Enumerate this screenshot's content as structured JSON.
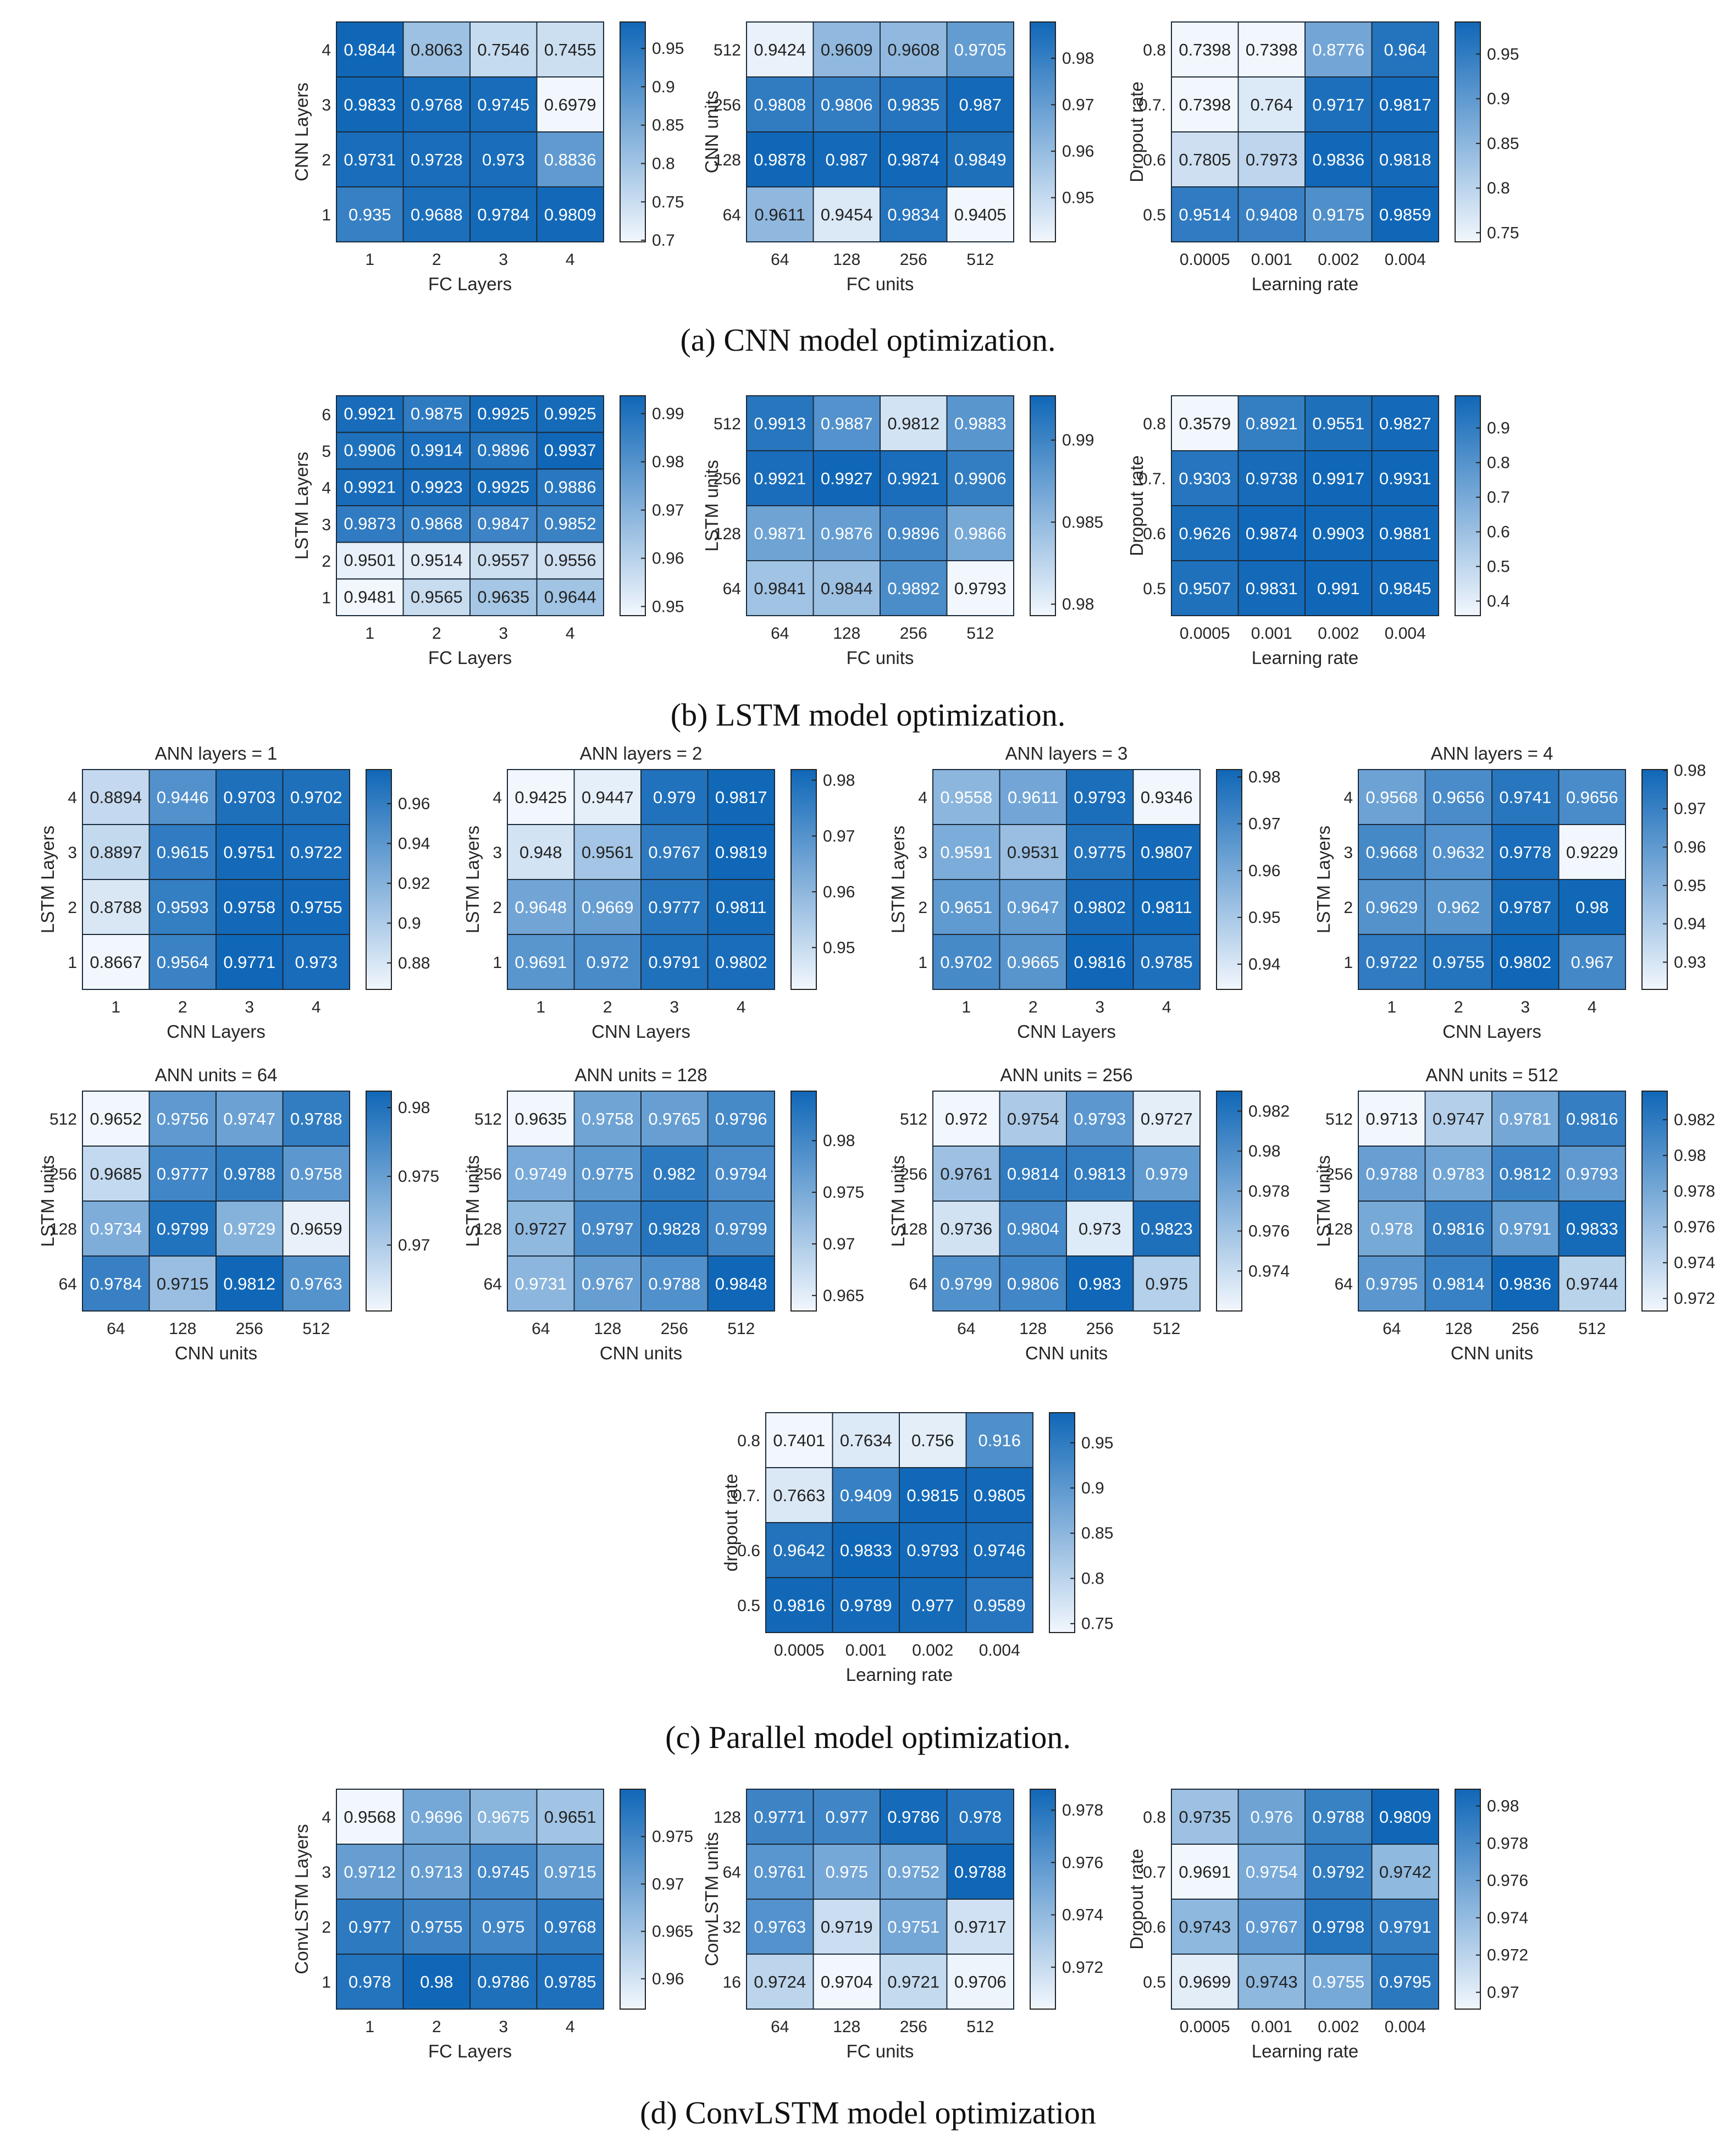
{
  "colors": {
    "low": "#f2f7fd",
    "high": "#1067b7",
    "text_dark": "#222222",
    "text_light": "#ffffff",
    "grid": "#1a2a3a"
  },
  "captions": [
    "(a) CNN model optimization.",
    "(b) LSTM model optimization.",
    "(c) Parallel model optimization.",
    "(d) ConvLSTM model optimization"
  ],
  "chart_data": [
    {
      "type": "heatmap",
      "title": "",
      "xlabel": "FC Layers",
      "ylabel": "CNN Layers",
      "x": [
        "1",
        "2",
        "3",
        "4"
      ],
      "y": [
        "4",
        "3",
        "2",
        "1"
      ],
      "values": [
        [
          0.9844,
          0.8063,
          0.7546,
          0.7455
        ],
        [
          0.9833,
          0.9768,
          0.9745,
          0.6979
        ],
        [
          0.9731,
          0.9728,
          0.973,
          0.8836
        ],
        [
          0.935,
          0.9688,
          0.9784,
          0.9809
        ]
      ],
      "clim": [
        0.6979,
        0.9844
      ],
      "colorbar_ticks": [
        "0.95",
        "0.9",
        "0.85",
        "0.8",
        "0.75",
        "0.7"
      ]
    },
    {
      "type": "heatmap",
      "title": "",
      "xlabel": "FC units",
      "ylabel": "CNN units",
      "x": [
        "64",
        "128",
        "256",
        "512"
      ],
      "y": [
        "512",
        "256",
        "128",
        "64"
      ],
      "values": [
        [
          0.9424,
          0.9609,
          0.9608,
          0.9705
        ],
        [
          0.9808,
          0.9806,
          0.9835,
          0.987
        ],
        [
          0.9878,
          0.987,
          0.9874,
          0.9849
        ],
        [
          0.9611,
          0.9454,
          0.9834,
          0.9405
        ]
      ],
      "clim": [
        0.9405,
        0.9878
      ],
      "colorbar_ticks": [
        "0.98",
        "0.97",
        "0.96",
        "0.95"
      ]
    },
    {
      "type": "heatmap",
      "title": "",
      "xlabel": "Learning rate",
      "ylabel": "Dropout rate",
      "x": [
        "0.0005",
        "0.001",
        "0.002",
        "0.004"
      ],
      "y": [
        "0.8",
        "0.7.",
        "0.6",
        "0.5"
      ],
      "values": [
        [
          0.7398,
          0.7398,
          0.8776,
          0.964
        ],
        [
          0.7398,
          0.764,
          0.9717,
          0.9817
        ],
        [
          0.7805,
          0.7973,
          0.9836,
          0.9818
        ],
        [
          0.9514,
          0.9408,
          0.9175,
          0.9859
        ]
      ],
      "clim": [
        0.7398,
        0.9859
      ],
      "colorbar_ticks": [
        "0.95",
        "0.9",
        "0.85",
        "0.8",
        "0.75"
      ]
    },
    {
      "type": "heatmap",
      "title": "",
      "xlabel": "FC Layers",
      "ylabel": "LSTM Layers",
      "x": [
        "1",
        "2",
        "3",
        "4"
      ],
      "y": [
        "6",
        "5",
        "4",
        "3",
        "2",
        "1"
      ],
      "values": [
        [
          0.9921,
          0.9875,
          0.9925,
          0.9925
        ],
        [
          0.9906,
          0.9914,
          0.9896,
          0.9937
        ],
        [
          0.9921,
          0.9923,
          0.9925,
          0.9886
        ],
        [
          0.9873,
          0.9868,
          0.9847,
          0.9852
        ],
        [
          0.9501,
          0.9514,
          0.9557,
          0.9556
        ],
        [
          0.9481,
          0.9565,
          0.9635,
          0.9644
        ]
      ],
      "clim": [
        0.9481,
        0.9937
      ],
      "colorbar_ticks": [
        "0.99",
        "0.98",
        "0.97",
        "0.96",
        "0.95"
      ]
    },
    {
      "type": "heatmap",
      "title": "",
      "xlabel": "FC units",
      "ylabel": "LSTM units",
      "x": [
        "64",
        "128",
        "256",
        "512"
      ],
      "y": [
        "512",
        "256",
        "128",
        "64"
      ],
      "values": [
        [
          0.9913,
          0.9887,
          0.9812,
          0.9883
        ],
        [
          0.9921,
          0.9927,
          0.9921,
          0.9906
        ],
        [
          0.9871,
          0.9876,
          0.9896,
          0.9866
        ],
        [
          0.9841,
          0.9844,
          0.9892,
          0.9793
        ]
      ],
      "clim": [
        0.9793,
        0.9927
      ],
      "colorbar_ticks": [
        "0.99",
        "0.985",
        "0.98"
      ]
    },
    {
      "type": "heatmap",
      "title": "",
      "xlabel": "Learning rate",
      "ylabel": "Dropout rate",
      "x": [
        "0.0005",
        "0.001",
        "0.002",
        "0.004"
      ],
      "y": [
        "0.8",
        "0.7.",
        "0.6",
        "0.5"
      ],
      "values": [
        [
          0.3579,
          0.8921,
          0.9551,
          0.9827
        ],
        [
          0.9303,
          0.9738,
          0.9917,
          0.9931
        ],
        [
          0.9626,
          0.9874,
          0.9903,
          0.9881
        ],
        [
          0.9507,
          0.9831,
          0.991,
          0.9845
        ]
      ],
      "clim": [
        0.3579,
        0.9931
      ],
      "colorbar_ticks": [
        "0.9",
        "0.8",
        "0.7",
        "0.6",
        "0.5",
        "0.4"
      ]
    },
    {
      "type": "heatmap",
      "title": "ANN layers = 1",
      "xlabel": "CNN Layers",
      "ylabel": "LSTM Layers",
      "x": [
        "1",
        "2",
        "3",
        "4"
      ],
      "y": [
        "4",
        "3",
        "2",
        "1"
      ],
      "values": [
        [
          0.8894,
          0.9446,
          0.9703,
          0.9702
        ],
        [
          0.8897,
          0.9615,
          0.9751,
          0.9722
        ],
        [
          0.8788,
          0.9593,
          0.9758,
          0.9755
        ],
        [
          0.8667,
          0.9564,
          0.9771,
          0.973
        ]
      ],
      "clim": [
        0.8667,
        0.9771
      ],
      "colorbar_ticks": [
        "0.96",
        "0.94",
        "0.92",
        "0.9",
        "0.88"
      ]
    },
    {
      "type": "heatmap",
      "title": "ANN layers = 2",
      "xlabel": "CNN Layers",
      "ylabel": "LSTM Layers",
      "x": [
        "1",
        "2",
        "3",
        "4"
      ],
      "y": [
        "4",
        "3",
        "2",
        "1"
      ],
      "values": [
        [
          0.9425,
          0.9447,
          0.979,
          0.9817
        ],
        [
          0.948,
          0.9561,
          0.9767,
          0.9819
        ],
        [
          0.9648,
          0.9669,
          0.9777,
          0.9811
        ],
        [
          0.9691,
          0.972,
          0.9791,
          0.9802
        ]
      ],
      "clim": [
        0.9425,
        0.9819
      ],
      "colorbar_ticks": [
        "0.98",
        "0.97",
        "0.96",
        "0.95"
      ]
    },
    {
      "type": "heatmap",
      "title": "ANN layers = 3",
      "xlabel": "CNN Layers",
      "ylabel": "LSTM Layers",
      "x": [
        "1",
        "2",
        "3",
        "4"
      ],
      "y": [
        "4",
        "3",
        "2",
        "1"
      ],
      "values": [
        [
          0.9558,
          0.9611,
          0.9793,
          0.9346
        ],
        [
          0.9591,
          0.9531,
          0.9775,
          0.9807
        ],
        [
          0.9651,
          0.9647,
          0.9802,
          0.9811
        ],
        [
          0.9702,
          0.9665,
          0.9816,
          0.9785
        ]
      ],
      "clim": [
        0.9346,
        0.9816
      ],
      "colorbar_ticks": [
        "0.98",
        "0.97",
        "0.96",
        "0.95",
        "0.94"
      ]
    },
    {
      "type": "heatmap",
      "title": "ANN layers = 4",
      "xlabel": "CNN Layers",
      "ylabel": "LSTM Layers",
      "x": [
        "1",
        "2",
        "3",
        "4"
      ],
      "y": [
        "4",
        "3",
        "2",
        "1"
      ],
      "values": [
        [
          0.9568,
          0.9656,
          0.9741,
          0.9656
        ],
        [
          0.9668,
          0.9632,
          0.9778,
          0.9229
        ],
        [
          0.9629,
          0.962,
          0.9787,
          0.98
        ],
        [
          0.9722,
          0.9755,
          0.9802,
          0.967
        ]
      ],
      "clim": [
        0.9229,
        0.9802
      ],
      "colorbar_ticks": [
        "0.98",
        "0.97",
        "0.96",
        "0.95",
        "0.94",
        "0.93"
      ]
    },
    {
      "type": "heatmap",
      "title": "ANN units = 64",
      "xlabel": "CNN units",
      "ylabel": "LSTM units",
      "x": [
        "64",
        "128",
        "256",
        "512"
      ],
      "y": [
        "512",
        "256",
        "128",
        "64"
      ],
      "values": [
        [
          0.9652,
          0.9756,
          0.9747,
          0.9788
        ],
        [
          0.9685,
          0.9777,
          0.9788,
          0.9758
        ],
        [
          0.9734,
          0.9799,
          0.9729,
          0.9659
        ],
        [
          0.9784,
          0.9715,
          0.9812,
          0.9763
        ]
      ],
      "clim": [
        0.9652,
        0.9812
      ],
      "colorbar_ticks": [
        "0.98",
        "0.975",
        "0.97"
      ]
    },
    {
      "type": "heatmap",
      "title": "ANN units = 128",
      "xlabel": "CNN units",
      "ylabel": "LSTM units",
      "x": [
        "64",
        "128",
        "256",
        "512"
      ],
      "y": [
        "512",
        "256",
        "128",
        "64"
      ],
      "values": [
        [
          0.9635,
          0.9758,
          0.9765,
          0.9796
        ],
        [
          0.9749,
          0.9775,
          0.982,
          0.9794
        ],
        [
          0.9727,
          0.9797,
          0.9828,
          0.9799
        ],
        [
          0.9731,
          0.9767,
          0.9788,
          0.9848
        ]
      ],
      "clim": [
        0.9635,
        0.9848
      ],
      "colorbar_ticks": [
        "0.98",
        "0.975",
        "0.97",
        "0.965"
      ]
    },
    {
      "type": "heatmap",
      "title": "ANN units = 256",
      "xlabel": "CNN units",
      "ylabel": "LSTM units",
      "x": [
        "64",
        "128",
        "256",
        "512"
      ],
      "y": [
        "512",
        "256",
        "128",
        "64"
      ],
      "values": [
        [
          0.972,
          0.9754,
          0.9793,
          0.9727
        ],
        [
          0.9761,
          0.9814,
          0.9813,
          0.979
        ],
        [
          0.9736,
          0.9804,
          0.973,
          0.9823
        ],
        [
          0.9799,
          0.9806,
          0.983,
          0.975
        ]
      ],
      "clim": [
        0.972,
        0.983
      ],
      "colorbar_ticks": [
        "0.982",
        "0.98",
        "0.978",
        "0.976",
        "0.974"
      ]
    },
    {
      "type": "heatmap",
      "title": "ANN units = 512",
      "xlabel": "CNN units",
      "ylabel": "LSTM units",
      "x": [
        "64",
        "128",
        "256",
        "512"
      ],
      "y": [
        "512",
        "256",
        "128",
        "64"
      ],
      "values": [
        [
          0.9713,
          0.9747,
          0.9781,
          0.9816
        ],
        [
          0.9788,
          0.9783,
          0.9812,
          0.9793
        ],
        [
          0.978,
          0.9816,
          0.9791,
          0.9833
        ],
        [
          0.9795,
          0.9814,
          0.9836,
          0.9744
        ]
      ],
      "clim": [
        0.9713,
        0.9836
      ],
      "colorbar_ticks": [
        "0.982",
        "0.98",
        "0.978",
        "0.976",
        "0.974",
        "0.972"
      ]
    },
    {
      "type": "heatmap",
      "title": "",
      "xlabel": "Learning rate",
      "ylabel": "dropout rate",
      "x": [
        "0.0005",
        "0.001",
        "0.002",
        "0.004"
      ],
      "y": [
        "0.8",
        "0.7.",
        "0.6",
        "0.5"
      ],
      "values": [
        [
          0.7401,
          0.7634,
          0.756,
          0.916
        ],
        [
          0.7663,
          0.9409,
          0.9815,
          0.9805
        ],
        [
          0.9642,
          0.9833,
          0.9793,
          0.9746
        ],
        [
          0.9816,
          0.9789,
          0.977,
          0.9589
        ]
      ],
      "clim": [
        0.7401,
        0.9833
      ],
      "colorbar_ticks": [
        "0.95",
        "0.9",
        "0.85",
        "0.8",
        "0.75"
      ]
    },
    {
      "type": "heatmap",
      "title": "",
      "xlabel": "FC Layers",
      "ylabel": "ConvLSTM Layers",
      "x": [
        "1",
        "2",
        "3",
        "4"
      ],
      "y": [
        "4",
        "3",
        "2",
        "1"
      ],
      "values": [
        [
          0.9568,
          0.9696,
          0.9675,
          0.9651
        ],
        [
          0.9712,
          0.9713,
          0.9745,
          0.9715
        ],
        [
          0.977,
          0.9755,
          0.975,
          0.9768
        ],
        [
          0.978,
          0.98,
          0.9786,
          0.9785
        ]
      ],
      "clim": [
        0.9568,
        0.98
      ],
      "colorbar_ticks": [
        "0.975",
        "0.97",
        "0.965",
        "0.96"
      ]
    },
    {
      "type": "heatmap",
      "title": "",
      "xlabel": "FC units",
      "ylabel": "ConvLSTM units",
      "x": [
        "64",
        "128",
        "256",
        "512"
      ],
      "y": [
        "128",
        "64",
        "32",
        "16"
      ],
      "values": [
        [
          0.9771,
          0.977,
          0.9786,
          0.978
        ],
        [
          0.9761,
          0.975,
          0.9752,
          0.9788
        ],
        [
          0.9763,
          0.9719,
          0.9751,
          0.9717
        ],
        [
          0.9724,
          0.9704,
          0.9721,
          0.9706
        ]
      ],
      "clim": [
        0.9704,
        0.9788
      ],
      "colorbar_ticks": [
        "0.978",
        "0.976",
        "0.974",
        "0.972"
      ]
    },
    {
      "type": "heatmap",
      "title": "",
      "xlabel": "Learning rate",
      "ylabel": "Dropout rate",
      "x": [
        "0.0005",
        "0.001",
        "0.002",
        "0.004"
      ],
      "y": [
        "0.8",
        "0.7",
        "0.6",
        "0.5"
      ],
      "values": [
        [
          0.9735,
          0.976,
          0.9788,
          0.9809
        ],
        [
          0.9691,
          0.9754,
          0.9792,
          0.9742
        ],
        [
          0.9743,
          0.9767,
          0.9798,
          0.9791
        ],
        [
          0.9699,
          0.9743,
          0.9755,
          0.9795
        ]
      ],
      "clim": [
        0.9691,
        0.9809
      ],
      "colorbar_ticks": [
        "0.98",
        "0.978",
        "0.976",
        "0.974",
        "0.972",
        "0.97"
      ]
    }
  ]
}
